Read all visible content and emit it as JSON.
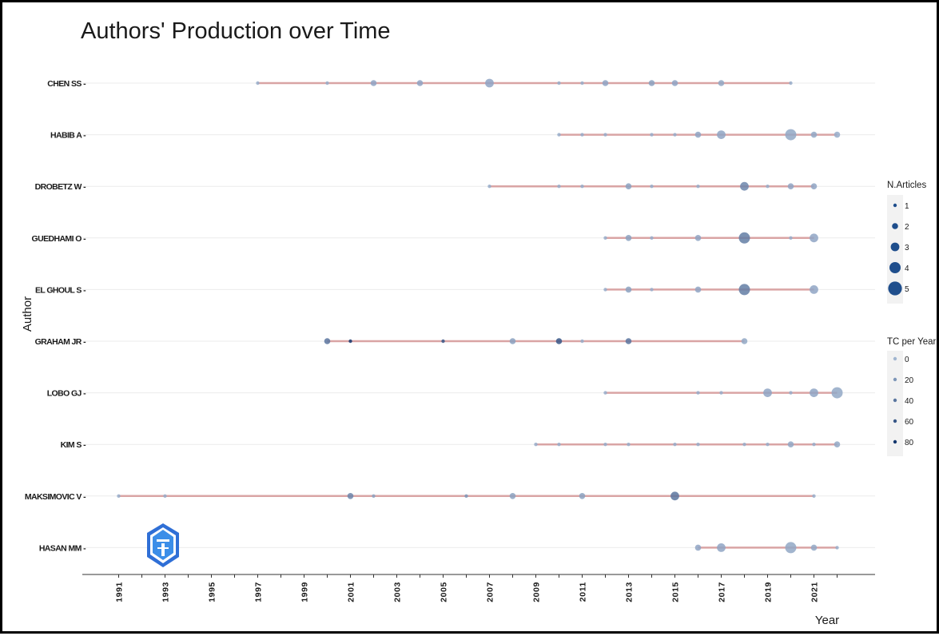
{
  "chart_data": {
    "type": "scatter",
    "title": "Authors' Production over Time",
    "xlabel": "Year",
    "ylabel": "Author",
    "xlim": [
      1991,
      2022
    ],
    "xticks": [
      "1991",
      "1993",
      "1995",
      "1997",
      "1999",
      "2001",
      "2003",
      "2005",
      "2007",
      "2009",
      "2011",
      "2013",
      "2015",
      "2017",
      "2019",
      "2021"
    ],
    "grid": "horizontal",
    "legend_position": "right",
    "colors": {
      "timeline": "#d9a4a4",
      "point": "#1f4e8c",
      "grid": "#ebebeb",
      "axis": "#333333"
    },
    "legend": {
      "size_title": "N.Articles",
      "size_entries": [
        "1",
        "2",
        "3",
        "4",
        "5"
      ],
      "color_title": "TC per Year",
      "color_entries": [
        "0",
        "20",
        "40",
        "60",
        "80"
      ]
    },
    "authors": [
      {
        "name": "CHEN SS",
        "points": [
          {
            "year": 1997,
            "n": 1,
            "tc": 5
          },
          {
            "year": 2000,
            "n": 1,
            "tc": 5
          },
          {
            "year": 2002,
            "n": 2,
            "tc": 10
          },
          {
            "year": 2004,
            "n": 2,
            "tc": 10
          },
          {
            "year": 2007,
            "n": 3,
            "tc": 10
          },
          {
            "year": 2010,
            "n": 1,
            "tc": 5
          },
          {
            "year": 2011,
            "n": 1,
            "tc": 5
          },
          {
            "year": 2012,
            "n": 2,
            "tc": 10
          },
          {
            "year": 2014,
            "n": 2,
            "tc": 12
          },
          {
            "year": 2015,
            "n": 2,
            "tc": 10
          },
          {
            "year": 2017,
            "n": 2,
            "tc": 8
          },
          {
            "year": 2020,
            "n": 1,
            "tc": 5
          }
        ]
      },
      {
        "name": "HABIB A",
        "points": [
          {
            "year": 2010,
            "n": 1,
            "tc": 5
          },
          {
            "year": 2011,
            "n": 1,
            "tc": 5
          },
          {
            "year": 2012,
            "n": 1,
            "tc": 5
          },
          {
            "year": 2014,
            "n": 1,
            "tc": 5
          },
          {
            "year": 2015,
            "n": 1,
            "tc": 5
          },
          {
            "year": 2016,
            "n": 2,
            "tc": 10
          },
          {
            "year": 2017,
            "n": 3,
            "tc": 10
          },
          {
            "year": 2020,
            "n": 4,
            "tc": 8
          },
          {
            "year": 2021,
            "n": 2,
            "tc": 8
          },
          {
            "year": 2022,
            "n": 2,
            "tc": 5
          }
        ]
      },
      {
        "name": "DROBETZ W",
        "points": [
          {
            "year": 2007,
            "n": 1,
            "tc": 5
          },
          {
            "year": 2010,
            "n": 1,
            "tc": 5
          },
          {
            "year": 2011,
            "n": 1,
            "tc": 5
          },
          {
            "year": 2013,
            "n": 2,
            "tc": 12
          },
          {
            "year": 2014,
            "n": 1,
            "tc": 5
          },
          {
            "year": 2016,
            "n": 1,
            "tc": 5
          },
          {
            "year": 2018,
            "n": 3,
            "tc": 30
          },
          {
            "year": 2019,
            "n": 1,
            "tc": 5
          },
          {
            "year": 2020,
            "n": 2,
            "tc": 10
          },
          {
            "year": 2021,
            "n": 2,
            "tc": 10
          }
        ]
      },
      {
        "name": "GUEDHAMI O",
        "points": [
          {
            "year": 2012,
            "n": 1,
            "tc": 5
          },
          {
            "year": 2013,
            "n": 2,
            "tc": 12
          },
          {
            "year": 2014,
            "n": 1,
            "tc": 5
          },
          {
            "year": 2016,
            "n": 2,
            "tc": 10
          },
          {
            "year": 2018,
            "n": 4,
            "tc": 35
          },
          {
            "year": 2020,
            "n": 1,
            "tc": 5
          },
          {
            "year": 2021,
            "n": 3,
            "tc": 10
          }
        ]
      },
      {
        "name": "EL GHOUL S",
        "points": [
          {
            "year": 2012,
            "n": 1,
            "tc": 5
          },
          {
            "year": 2013,
            "n": 2,
            "tc": 12
          },
          {
            "year": 2014,
            "n": 1,
            "tc": 5
          },
          {
            "year": 2016,
            "n": 2,
            "tc": 10
          },
          {
            "year": 2018,
            "n": 4,
            "tc": 35
          },
          {
            "year": 2021,
            "n": 3,
            "tc": 10
          }
        ]
      },
      {
        "name": "GRAHAM JR",
        "points": [
          {
            "year": 2000,
            "n": 2,
            "tc": 40
          },
          {
            "year": 2001,
            "n": 1,
            "tc": 80
          },
          {
            "year": 2005,
            "n": 1,
            "tc": 60
          },
          {
            "year": 2008,
            "n": 2,
            "tc": 12
          },
          {
            "year": 2010,
            "n": 2,
            "tc": 60
          },
          {
            "year": 2011,
            "n": 1,
            "tc": 5
          },
          {
            "year": 2013,
            "n": 2,
            "tc": 40
          },
          {
            "year": 2018,
            "n": 2,
            "tc": 8
          }
        ]
      },
      {
        "name": "LOBO GJ",
        "points": [
          {
            "year": 2012,
            "n": 1,
            "tc": 5
          },
          {
            "year": 2016,
            "n": 1,
            "tc": 5
          },
          {
            "year": 2017,
            "n": 1,
            "tc": 5
          },
          {
            "year": 2019,
            "n": 3,
            "tc": 10
          },
          {
            "year": 2020,
            "n": 1,
            "tc": 5
          },
          {
            "year": 2021,
            "n": 3,
            "tc": 10
          },
          {
            "year": 2022,
            "n": 4,
            "tc": 8
          }
        ]
      },
      {
        "name": "KIM S",
        "points": [
          {
            "year": 2009,
            "n": 1,
            "tc": 5
          },
          {
            "year": 2010,
            "n": 1,
            "tc": 5
          },
          {
            "year": 2012,
            "n": 1,
            "tc": 5
          },
          {
            "year": 2013,
            "n": 1,
            "tc": 5
          },
          {
            "year": 2015,
            "n": 1,
            "tc": 5
          },
          {
            "year": 2016,
            "n": 1,
            "tc": 5
          },
          {
            "year": 2018,
            "n": 1,
            "tc": 5
          },
          {
            "year": 2019,
            "n": 1,
            "tc": 5
          },
          {
            "year": 2020,
            "n": 2,
            "tc": 8
          },
          {
            "year": 2021,
            "n": 1,
            "tc": 5
          },
          {
            "year": 2022,
            "n": 2,
            "tc": 8
          }
        ]
      },
      {
        "name": "MAKSIMOVIC V",
        "points": [
          {
            "year": 1991,
            "n": 1,
            "tc": 5
          },
          {
            "year": 1993,
            "n": 1,
            "tc": 5
          },
          {
            "year": 2001,
            "n": 2,
            "tc": 30
          },
          {
            "year": 2002,
            "n": 1,
            "tc": 12
          },
          {
            "year": 2006,
            "n": 1,
            "tc": 20
          },
          {
            "year": 2008,
            "n": 2,
            "tc": 12
          },
          {
            "year": 2011,
            "n": 2,
            "tc": 12
          },
          {
            "year": 2015,
            "n": 3,
            "tc": 40
          },
          {
            "year": 2021,
            "n": 1,
            "tc": 5
          }
        ]
      },
      {
        "name": "HASAN MM",
        "points": [
          {
            "year": 2016,
            "n": 2,
            "tc": 10
          },
          {
            "year": 2017,
            "n": 3,
            "tc": 10
          },
          {
            "year": 2020,
            "n": 4,
            "tc": 8
          },
          {
            "year": 2021,
            "n": 2,
            "tc": 8
          },
          {
            "year": 2022,
            "n": 1,
            "tc": 5
          }
        ]
      }
    ]
  }
}
